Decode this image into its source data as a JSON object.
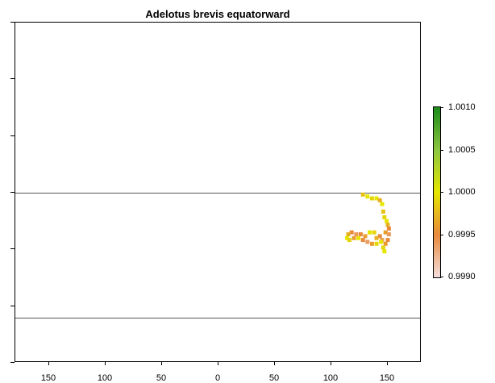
{
  "title": "Adelotus brevis equatorward",
  "x_axis": {
    "tick_labels": [
      "150",
      "100",
      "50",
      "0",
      "50",
      "100",
      "150"
    ],
    "tick_values": [
      -150,
      -100,
      -50,
      0,
      50,
      100,
      150
    ],
    "range": [
      -180,
      180
    ]
  },
  "y_axis": {
    "range": [
      -90,
      90
    ],
    "tick_values": [
      -90,
      -60,
      -30,
      0,
      30,
      60,
      90
    ],
    "tick_labels_visible": false
  },
  "reference_lines_lat": [
    0,
    -66
  ],
  "legend": {
    "labels": [
      "1.0010",
      "1.0005",
      "1.0000",
      "0.9995",
      "0.9990"
    ],
    "values": [
      1.001,
      1.0005,
      1.0,
      0.9995,
      0.999
    ],
    "colors": [
      "#1a8a1a",
      "#8cc63f",
      "#e6e600",
      "#e88a3c",
      "#f5dede"
    ]
  },
  "chart_data": {
    "type": "heatmap",
    "title": "Adelotus brevis equatorward",
    "xlim": [
      -180,
      180
    ],
    "ylim": [
      -90,
      90
    ],
    "value_range": [
      0.999,
      1.001
    ],
    "grid": false,
    "legend_placement": "right",
    "cells": [
      {
        "lon": 128,
        "lat": -1,
        "value": 0.9998
      },
      {
        "lon": 132,
        "lat": -2,
        "value": 1.0
      },
      {
        "lon": 136,
        "lat": -3,
        "value": 0.9999
      },
      {
        "lon": 140,
        "lat": -3,
        "value": 1.0
      },
      {
        "lon": 143,
        "lat": -4,
        "value": 0.9997
      },
      {
        "lon": 145,
        "lat": -6,
        "value": 1.0
      },
      {
        "lon": 146,
        "lat": -10,
        "value": 0.9998
      },
      {
        "lon": 147,
        "lat": -13,
        "value": 0.9999
      },
      {
        "lon": 149,
        "lat": -15,
        "value": 1.0
      },
      {
        "lon": 150,
        "lat": -17,
        "value": 0.9997
      },
      {
        "lon": 151,
        "lat": -19,
        "value": 0.9995
      },
      {
        "lon": 151,
        "lat": -22,
        "value": 0.9994
      },
      {
        "lon": 150,
        "lat": -25,
        "value": 0.9995
      },
      {
        "lon": 148,
        "lat": -27,
        "value": 0.9996
      },
      {
        "lon": 146,
        "lat": -29,
        "value": 0.9999
      },
      {
        "lon": 147,
        "lat": -31,
        "value": 1.0
      },
      {
        "lon": 145,
        "lat": -25,
        "value": 0.9994
      },
      {
        "lon": 143,
        "lat": -23,
        "value": 0.9995
      },
      {
        "lon": 140,
        "lat": -24,
        "value": 0.9997
      },
      {
        "lon": 138,
        "lat": -21,
        "value": 0.9999
      },
      {
        "lon": 134,
        "lat": -21,
        "value": 1.0
      },
      {
        "lon": 130,
        "lat": -23,
        "value": 0.9996
      },
      {
        "lon": 126,
        "lat": -22,
        "value": 0.9995
      },
      {
        "lon": 122,
        "lat": -22,
        "value": 0.9994
      },
      {
        "lon": 118,
        "lat": -21,
        "value": 0.9995
      },
      {
        "lon": 115,
        "lat": -22,
        "value": 0.9997
      },
      {
        "lon": 114,
        "lat": -24,
        "value": 1.0
      },
      {
        "lon": 116,
        "lat": -25,
        "value": 0.9999
      },
      {
        "lon": 120,
        "lat": -24,
        "value": 0.9996
      },
      {
        "lon": 124,
        "lat": -24,
        "value": 1.0
      },
      {
        "lon": 128,
        "lat": -25,
        "value": 0.9995
      },
      {
        "lon": 132,
        "lat": -26,
        "value": 0.9994
      },
      {
        "lon": 136,
        "lat": -27,
        "value": 0.9996
      },
      {
        "lon": 140,
        "lat": -27,
        "value": 0.9999
      },
      {
        "lon": 144,
        "lat": -26,
        "value": 1.0
      },
      {
        "lon": 148,
        "lat": -21,
        "value": 0.9996
      }
    ]
  }
}
